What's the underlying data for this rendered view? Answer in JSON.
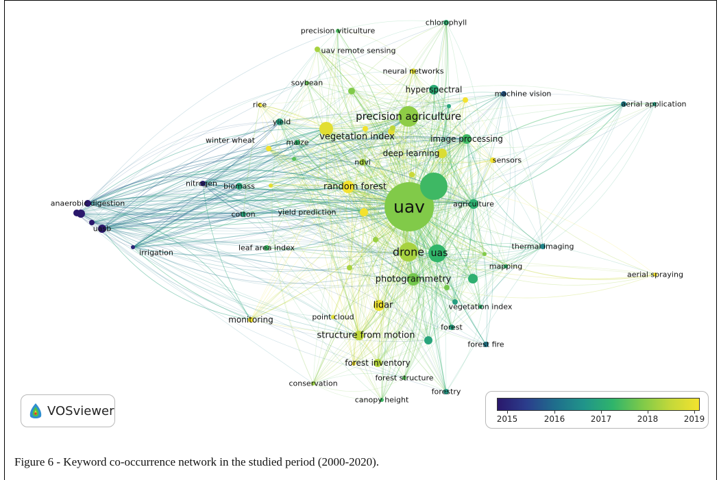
{
  "figure": {
    "caption": "Figure 6 - Keyword co-occurrence network in the studied period (2000-2020).",
    "logo_text": "VOSviewer",
    "logo_icon": "vosviewer-logo-icon"
  },
  "legend": {
    "ticks": [
      "2015",
      "2016",
      "2017",
      "2018",
      "2019"
    ],
    "colors": [
      "#2a186c",
      "#2b3d8c",
      "#1f6e8c",
      "#20948a",
      "#2fb46b",
      "#7cc94a",
      "#c3d83a",
      "#f3e22e"
    ]
  },
  "nodes": [
    {
      "label": "uav",
      "year": 2017.9
    },
    {
      "label": "precision agriculture",
      "year": 2018.0
    },
    {
      "label": "drone",
      "year": 2018.2
    },
    {
      "label": "uas",
      "year": 2017.3
    },
    {
      "label": "vegetation index",
      "year": 2018.8
    },
    {
      "label": "random forest",
      "year": 2019.0
    },
    {
      "label": "photogrammetry",
      "year": 2017.8
    },
    {
      "label": "structure from motion",
      "year": 2018.4
    },
    {
      "label": "lidar",
      "year": 2018.9
    },
    {
      "label": "image processing",
      "year": 2017.4
    },
    {
      "label": "deep learning",
      "year": 2018.7
    },
    {
      "label": "ndvi",
      "year": 2018.2
    },
    {
      "label": "hyperspectral",
      "year": 2017.1
    },
    {
      "label": "agriculture",
      "year": 2017.2
    },
    {
      "label": "yield",
      "year": 2016.9
    },
    {
      "label": "maize",
      "year": 2017.3
    },
    {
      "label": "biomass",
      "year": 2017.0
    },
    {
      "label": "nitrogen",
      "year": 2015.1
    },
    {
      "label": "anaerobic digestion",
      "year": 2014.9
    },
    {
      "label": "uasb",
      "year": 2014.9
    },
    {
      "label": "irrigation",
      "year": 2015.2
    },
    {
      "label": "cotton",
      "year": 2017.0
    },
    {
      "label": "yield prediction",
      "year": 2019.0
    },
    {
      "label": "leaf area index",
      "year": 2017.4
    },
    {
      "label": "winter wheat",
      "year": 2019.0
    },
    {
      "label": "rice",
      "year": 2019.1
    },
    {
      "label": "soybean",
      "year": 2017.7
    },
    {
      "label": "precision viticulture",
      "year": 2017.5
    },
    {
      "label": "uav remote sensing",
      "year": 2018.2
    },
    {
      "label": "chlorophyll",
      "year": 2017.2
    },
    {
      "label": "neural networks",
      "year": 2018.8
    },
    {
      "label": "machine vision",
      "year": 2015.9
    },
    {
      "label": "aerial application",
      "year": 2016.4
    },
    {
      "label": "sensors",
      "year": 2019.1
    },
    {
      "label": "thermal imaging",
      "year": 2016.5
    },
    {
      "label": "mapping",
      "year": 2017.3
    },
    {
      "label": "aerial spraying",
      "year": 2019.0
    },
    {
      "label": "vegetation index",
      "year": 2017.2
    },
    {
      "label": "forest",
      "year": 2016.9
    },
    {
      "label": "forest fire",
      "year": 2016.3
    },
    {
      "label": "forest inventory",
      "year": 2018.3
    },
    {
      "label": "forest structure",
      "year": 2017.6
    },
    {
      "label": "forestry",
      "year": 2016.8
    },
    {
      "label": "canopy height",
      "year": 2017.4
    },
    {
      "label": "conservation",
      "year": 2018.1
    },
    {
      "label": "point cloud",
      "year": 2018.8
    },
    {
      "label": "monitoring",
      "year": 2019.0
    }
  ]
}
